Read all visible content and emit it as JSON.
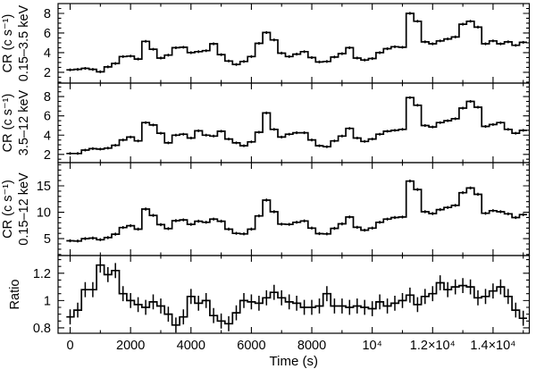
{
  "figure": {
    "background": "#ffffff",
    "line_color": "#000000"
  },
  "chart_data": {
    "type": "line",
    "subtype": "step-light-curves-with-error-bars",
    "layout_hint": "4 vertically stacked panels sharing one time axis, frame ticks on all sides, no grid, no legend",
    "x": {
      "label": "Time (s)",
      "lim": [
        -400,
        15200
      ],
      "major_ticks": [
        0,
        2000,
        4000,
        6000,
        8000,
        10000,
        12000,
        14000
      ],
      "tick_labels": [
        "0",
        "2000",
        "4000",
        "6000",
        "8000",
        "10⁴",
        "1.2×10⁴",
        "1.4×10⁴"
      ],
      "minor_step": 1000,
      "t_start": 0,
      "t_step": 250,
      "bin_width": 250
    },
    "panels": [
      {
        "id": "cr-soft",
        "ylabel_line1": "CR (c s⁻¹)",
        "ylabel_line2": "0.15–3.5 keV",
        "ylim": [
          0.9,
          9.0
        ],
        "y_major_ticks": [
          2,
          4,
          6,
          8
        ],
        "y_minor_step": 0.5,
        "err": 0.14,
        "values": [
          2.25,
          2.3,
          2.4,
          2.3,
          2.05,
          2.55,
          2.9,
          3.6,
          3.65,
          3.35,
          5.15,
          4.35,
          3.45,
          3.75,
          4.5,
          4.55,
          4.0,
          4.1,
          4.2,
          4.9,
          3.8,
          3.15,
          2.8,
          3.1,
          3.6,
          4.95,
          6.05,
          5.3,
          3.95,
          3.6,
          3.85,
          4.1,
          3.5,
          3.05,
          3.1,
          3.55,
          3.9,
          4.5,
          3.45,
          3.25,
          3.4,
          4.0,
          4.4,
          4.6,
          4.55,
          8.0,
          7.2,
          5.1,
          4.9,
          5.2,
          5.4,
          5.6,
          6.9,
          7.2,
          6.6,
          4.9,
          5.2,
          4.9,
          5.1,
          4.75,
          5.05
        ]
      },
      {
        "id": "cr-hard",
        "ylabel_line1": "CR (c s⁻¹)",
        "ylabel_line2": "3.5–12 keV",
        "ylim": [
          1.15,
          9.4
        ],
        "y_major_ticks": [
          2,
          4,
          6,
          8
        ],
        "y_minor_step": 0.5,
        "err": 0.14,
        "values": [
          2.1,
          2.1,
          2.45,
          2.6,
          2.55,
          2.65,
          2.95,
          3.5,
          3.8,
          3.4,
          5.3,
          5.05,
          4.2,
          3.2,
          4.0,
          4.1,
          3.7,
          4.45,
          4.0,
          3.9,
          4.4,
          3.6,
          3.2,
          2.9,
          3.3,
          4.3,
          6.3,
          4.6,
          3.8,
          4.1,
          4.25,
          4.25,
          3.5,
          2.9,
          2.8,
          3.4,
          3.9,
          4.7,
          3.7,
          3.35,
          3.6,
          4.1,
          4.4,
          4.5,
          4.6,
          7.9,
          7.1,
          5.0,
          4.85,
          5.3,
          5.5,
          5.7,
          6.8,
          7.5,
          6.9,
          4.9,
          5.1,
          5.3,
          4.6,
          4.2,
          4.5
        ]
      },
      {
        "id": "cr-total",
        "ylabel_line1": "CR (c s⁻¹)",
        "ylabel_line2": "0.15–12 keV",
        "ylim": [
          1.8,
          19.4
        ],
        "y_major_ticks": [
          5,
          10,
          15
        ],
        "y_minor_step": 1,
        "err": 0.28,
        "values": [
          4.6,
          4.55,
          5.0,
          5.1,
          4.8,
          5.2,
          5.85,
          7.1,
          7.45,
          6.8,
          10.6,
          9.4,
          7.65,
          6.9,
          8.4,
          8.55,
          7.7,
          8.3,
          8.1,
          8.7,
          8.3,
          6.8,
          6.0,
          5.9,
          6.8,
          9.3,
          12.3,
          10.1,
          7.75,
          7.7,
          8.1,
          8.35,
          7.0,
          5.95,
          5.9,
          6.95,
          7.8,
          9.1,
          7.15,
          6.6,
          7.0,
          8.1,
          8.7,
          9.0,
          9.1,
          15.9,
          14.3,
          10.1,
          9.75,
          10.5,
          10.9,
          11.3,
          13.7,
          14.6,
          13.4,
          9.8,
          10.3,
          10.1,
          9.7,
          9.0,
          9.55
        ]
      },
      {
        "id": "ratio",
        "ylabel_line1": "Ratio",
        "ylabel_line2": "",
        "ylim": [
          0.76,
          1.33
        ],
        "y_major_ticks": [
          0.8,
          1,
          1.2
        ],
        "y_minor_step": 0.05,
        "err": 0.055,
        "values": [
          0.88,
          0.93,
          1.08,
          1.08,
          1.26,
          1.19,
          1.22,
          1.05,
          1.0,
          0.97,
          0.95,
          0.99,
          0.96,
          0.9,
          0.82,
          0.88,
          1.03,
          0.98,
          1.0,
          0.89,
          0.85,
          0.83,
          0.91,
          1.0,
          0.99,
          0.98,
          1.02,
          1.06,
          1.02,
          0.99,
          0.98,
          0.95,
          0.95,
          0.96,
          1.05,
          0.96,
          0.96,
          0.95,
          0.96,
          0.95,
          0.94,
          0.99,
          0.96,
          0.98,
          1.0,
          1.04,
          0.97,
          1.03,
          1.05,
          1.13,
          1.08,
          1.1,
          1.11,
          1.1,
          1.02,
          1.03,
          1.07,
          1.1,
          1.03,
          0.93,
          0.87
        ]
      }
    ]
  }
}
